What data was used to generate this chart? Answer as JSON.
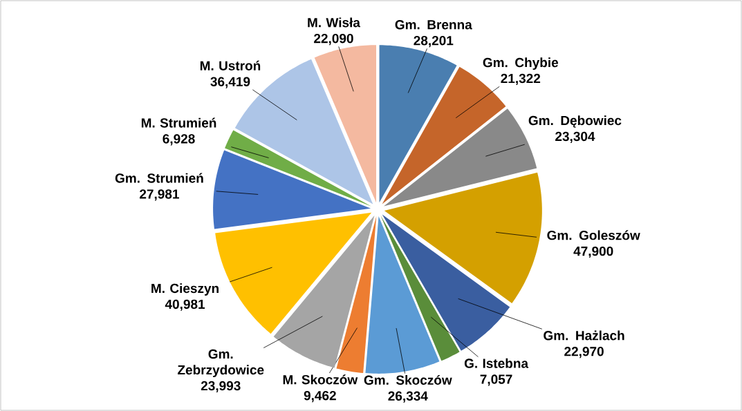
{
  "chart_data": {
    "type": "pie",
    "categories": [
      "Gm. Brenna",
      "Gm. Chybie",
      "Gm. Dębowiec",
      "Gm. Goleszów",
      "Gm. Hażlach",
      "G. Istebna",
      "Gm. Skoczów",
      "M. Skoczów",
      "Gm. Zebrzydowice",
      "M. Cieszyn",
      "Gm. Strumień",
      "M. Strumień",
      "M. Ustroń",
      "M. Wisła"
    ],
    "values": [
      28201,
      21322,
      23304,
      47900,
      22970,
      7057,
      26334,
      9462,
      23993,
      40981,
      27981,
      6928,
      36419,
      22090
    ],
    "value_labels": [
      "28,201",
      "21,322",
      "23,304",
      "47,900",
      "22,970",
      "7,057",
      "26,334",
      "9,462",
      "23,993",
      "40,981",
      "27,981",
      "6,928",
      "36,419",
      "22,090"
    ],
    "colors": [
      "#4a7eb0",
      "#c5652a",
      "#898989",
      "#d4a000",
      "#3a5ea0",
      "#5a8d3a",
      "#5b9bd5",
      "#ed7d31",
      "#a5a5a5",
      "#ffc000",
      "#4472c4",
      "#70ad47",
      "#adc5e7",
      "#f4b9a0"
    ]
  }
}
